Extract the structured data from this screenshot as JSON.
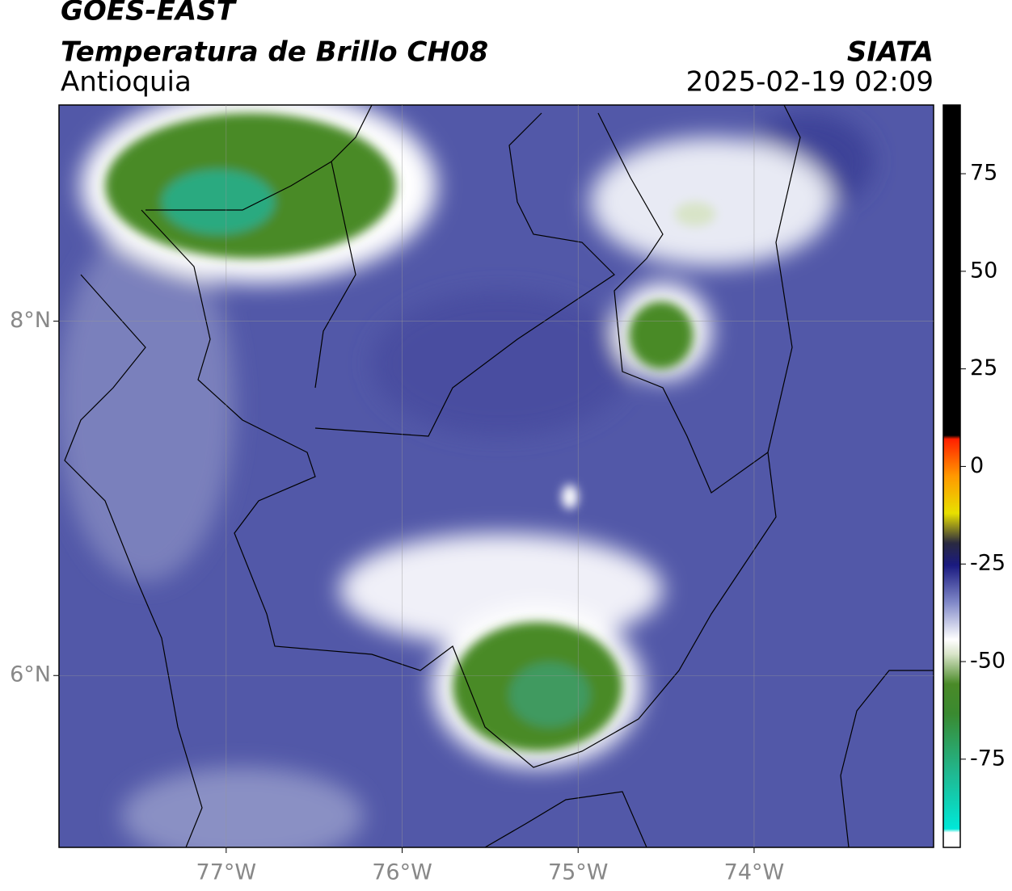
{
  "header": {
    "title": "GOES-EAST",
    "subtitle": "Temperatura de Brillo CH08",
    "region": "Antioquia",
    "source": "SIATA",
    "datetime": "2025-02-19 02:09"
  },
  "map": {
    "xlim": [
      -77.95,
      -72.98
    ],
    "ylim": [
      5.03,
      9.22
    ],
    "xticks": [
      {
        "value": -77,
        "label": "77°W"
      },
      {
        "value": -76,
        "label": "76°W"
      },
      {
        "value": -75,
        "label": "75°W"
      },
      {
        "value": -74,
        "label": "74°W"
      }
    ],
    "yticks": [
      {
        "value": 6,
        "label": "6°N"
      },
      {
        "value": 8,
        "label": "8°N"
      }
    ],
    "grid": true
  },
  "colorbar": {
    "lim": [
      -97.6,
      92.6
    ],
    "ticks": [
      -75,
      -50,
      -25,
      0,
      25,
      50,
      75
    ]
  }
}
